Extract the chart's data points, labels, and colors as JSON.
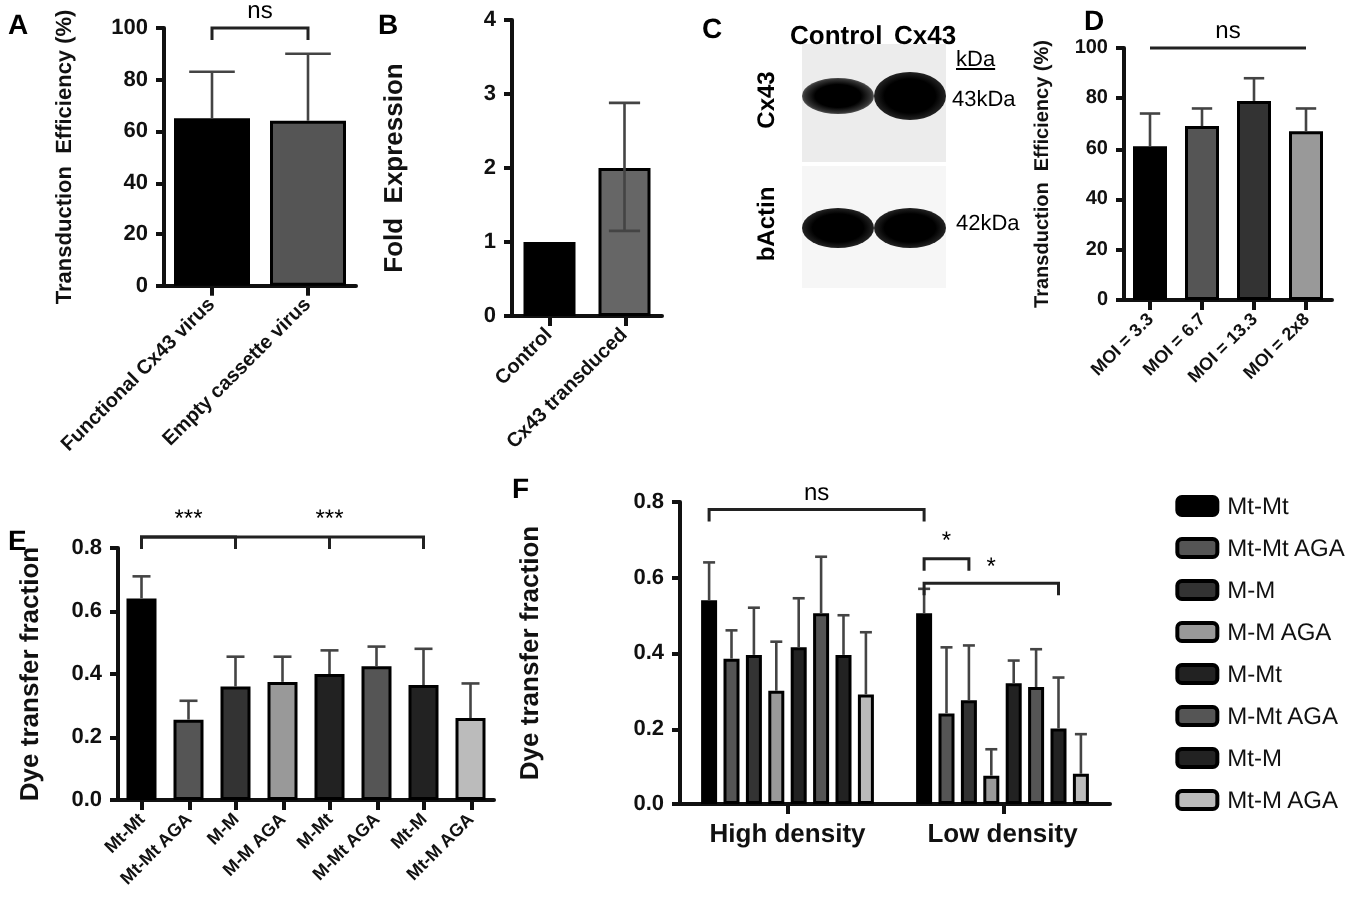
{
  "chart_data": [
    {
      "type": "bar",
      "title": "A",
      "ylabel": "Transduction  Efficiency (%)",
      "categories": [
        "Functional Cx43 virus",
        "Empty cassette virus"
      ],
      "values": [
        65,
        64
      ],
      "colors": [
        "#000000",
        "#555555"
      ],
      "errors": [
        [
          65,
          83
        ],
        [
          64,
          90
        ]
      ],
      "ylim": [
        0,
        100
      ],
      "yticks": [
        0,
        20,
        40,
        60,
        80,
        100
      ],
      "annotations": [
        "ns"
      ]
    },
    {
      "type": "bar",
      "title": "B",
      "ylabel": "Fold  Expression",
      "categories": [
        "Control",
        "Cx43 transduced"
      ],
      "values": [
        1,
        2
      ],
      "colors": [
        "#000000",
        "#666666"
      ],
      "errors": [
        null,
        [
          1.15,
          2.88
        ]
      ],
      "ylim": [
        0,
        4
      ],
      "yticks": [
        0,
        1,
        2,
        3,
        4
      ]
    },
    {
      "type": "other",
      "title": "C",
      "annotations": [
        "Control",
        "Cx43",
        "kDa",
        "43kDa",
        "42kDa",
        "Cx43",
        "bActin"
      ]
    },
    {
      "type": "bar",
      "title": "D",
      "ylabel": "Transduction  Efficiency (%)",
      "categories": [
        "MOI = 3.3",
        "MOI = 6.7",
        "MOI = 13.3",
        "MOI = 2x8"
      ],
      "values": [
        61,
        69,
        79,
        67
      ],
      "colors": [
        "#000000",
        "#555555",
        "#333333",
        "#999999"
      ],
      "errors": [
        [
          61,
          74
        ],
        [
          69,
          76
        ],
        [
          79,
          88
        ],
        [
          67,
          76
        ]
      ],
      "ylim": [
        0,
        100
      ],
      "yticks": [
        0,
        20,
        40,
        60,
        80,
        100
      ],
      "annotations": [
        "ns"
      ]
    },
    {
      "type": "bar",
      "title": "E",
      "ylabel": "Dye transfer fraction",
      "categories": [
        "Mt-Mt",
        "Mt-Mt AGA",
        "M-M",
        "M-M AGA",
        "M-Mt",
        "M-Mt AGA",
        "Mt-M",
        "Mt-M AGA"
      ],
      "values": [
        0.64,
        0.255,
        0.36,
        0.375,
        0.4,
        0.425,
        0.365,
        0.26
      ],
      "colors": [
        "#000000",
        "#555555",
        "#333333",
        "#999999",
        "#222222",
        "#555555",
        "#222222",
        "#bbbbbb"
      ],
      "errors": [
        [
          0.64,
          0.71
        ],
        [
          0.255,
          0.315
        ],
        [
          0.36,
          0.455
        ],
        [
          0.375,
          0.455
        ],
        [
          0.4,
          0.475
        ],
        [
          0.425,
          0.487
        ],
        [
          0.365,
          0.48
        ],
        [
          0.26,
          0.37
        ]
      ],
      "ylim": [
        0,
        0.8
      ],
      "yticks": [
        {
          "value": 0,
          "label": "0.0"
        },
        0.2,
        0.4,
        0.6,
        0.8
      ],
      "annotations": [
        "***",
        "***"
      ]
    },
    {
      "type": "bar",
      "title": "F",
      "ylabel": "Dye transfer fraction",
      "categories": [
        "High density",
        "Low density"
      ],
      "legend": "right",
      "ylim": [
        0,
        0.8
      ],
      "yticks": [
        {
          "value": 0,
          "label": "0.0"
        },
        0.2,
        0.4,
        0.6,
        0.8
      ],
      "annotations": [
        "ns",
        "*",
        "*"
      ],
      "series": [
        {
          "name": "Mt-Mt",
          "color": "#000000",
          "values": [
            0.54,
            0.505
          ],
          "errors": [
            [
              0.54,
              0.64
            ],
            [
              0.505,
              0.57
            ]
          ]
        },
        {
          "name": "Mt-Mt AGA",
          "color": "#555555",
          "values": [
            0.385,
            0.24
          ],
          "errors": [
            [
              0.385,
              0.46
            ],
            [
              0.24,
              0.415
            ]
          ]
        },
        {
          "name": "M-M",
          "color": "#333333",
          "values": [
            0.395,
            0.275
          ],
          "errors": [
            [
              0.395,
              0.52
            ],
            [
              0.275,
              0.42
            ]
          ]
        },
        {
          "name": "M-M AGA",
          "color": "#999999",
          "values": [
            0.3,
            0.075
          ],
          "errors": [
            [
              0.3,
              0.43
            ],
            [
              0.075,
              0.145
            ]
          ]
        },
        {
          "name": "M-Mt",
          "color": "#222222",
          "values": [
            0.415,
            0.32
          ],
          "errors": [
            [
              0.415,
              0.545
            ],
            [
              0.32,
              0.38
            ]
          ]
        },
        {
          "name": "M-Mt AGA",
          "color": "#555555",
          "values": [
            0.505,
            0.31
          ],
          "errors": [
            [
              0.505,
              0.655
            ],
            [
              0.31,
              0.41
            ]
          ]
        },
        {
          "name": "Mt-M",
          "color": "#222222",
          "values": [
            0.395,
            0.2
          ],
          "errors": [
            [
              0.395,
              0.5
            ],
            [
              0.2,
              0.335
            ]
          ]
        },
        {
          "name": "Mt-M AGA",
          "color": "#bbbbbb",
          "values": [
            0.29,
            0.08
          ],
          "errors": [
            [
              0.29,
              0.455
            ],
            [
              0.08,
              0.185
            ]
          ]
        }
      ]
    }
  ]
}
